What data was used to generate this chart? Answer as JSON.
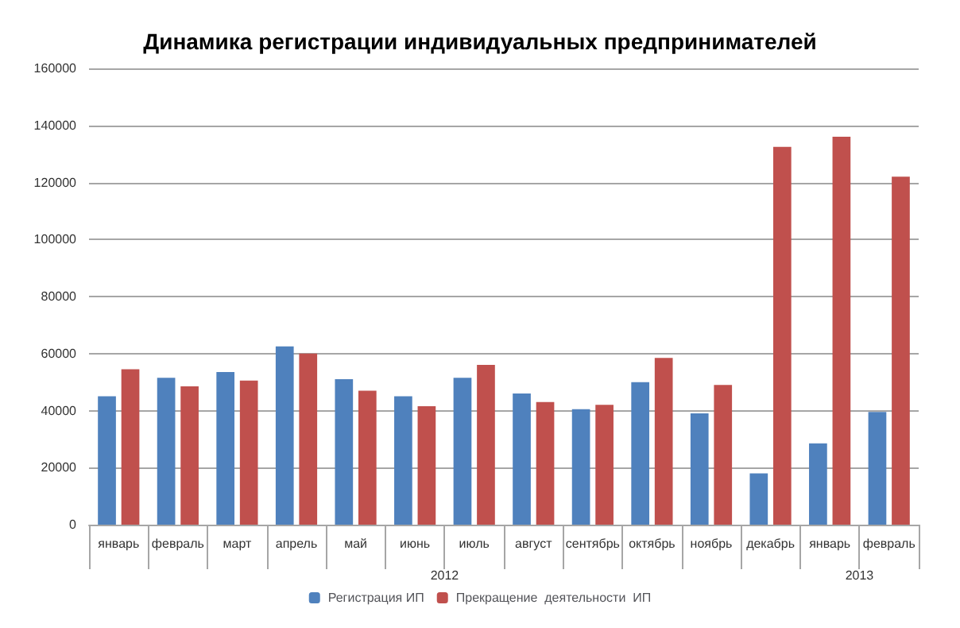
{
  "chart_data": {
    "type": "bar",
    "title": "Динамика регистрации индивидуальных предпринимателей",
    "categories": [
      "январь",
      "февраль",
      "март",
      "апрель",
      "май",
      "июнь",
      "июль",
      "август",
      "сентябрь",
      "октябрь",
      "ноябрь",
      "декабрь",
      "январь",
      "февраль"
    ],
    "series": [
      {
        "name": "Регистрация ИП",
        "color": "#4f81bd",
        "values": [
          45000,
          51500,
          53500,
          62500,
          51000,
          45000,
          51500,
          46000,
          40500,
          50000,
          39000,
          18000,
          28500,
          39500
        ]
      },
      {
        "name": "Прекращение  деятельности  ИП",
        "color": "#c0504d",
        "values": [
          54500,
          48500,
          50500,
          60000,
          47000,
          41500,
          56000,
          43000,
          42000,
          58500,
          49000,
          132500,
          136000,
          122000
        ]
      }
    ],
    "ylim": [
      0,
      160000
    ],
    "yticks": [
      0,
      20000,
      40000,
      60000,
      80000,
      100000,
      120000,
      140000,
      160000
    ],
    "grid": "y",
    "legend": "bottom",
    "annotations": [
      "2012",
      "2013"
    ]
  }
}
